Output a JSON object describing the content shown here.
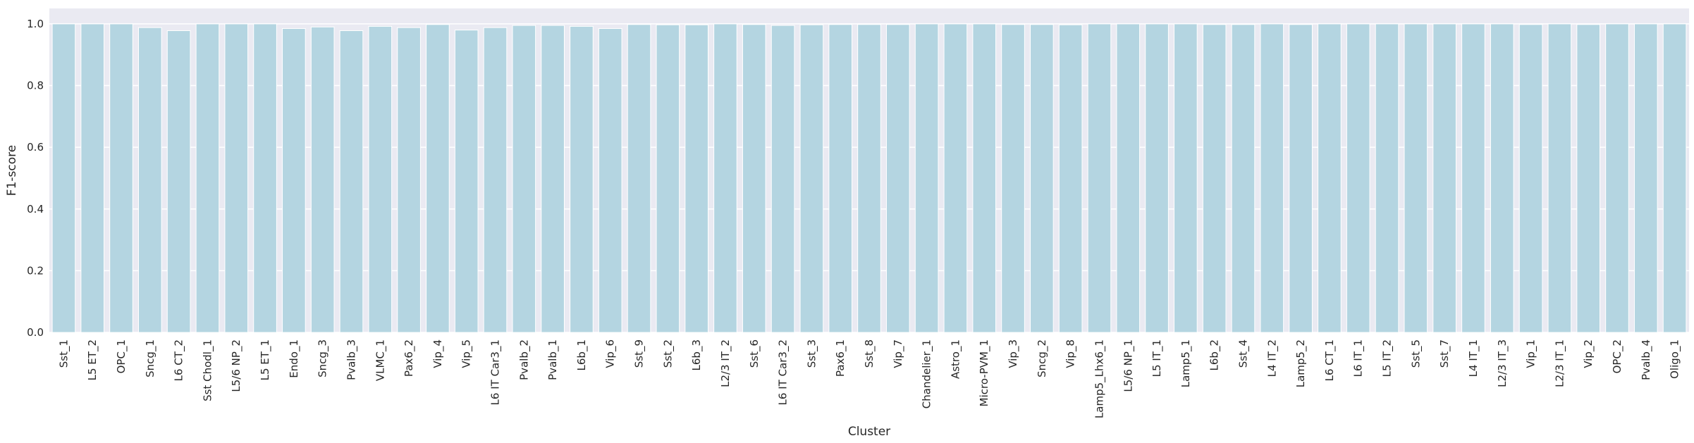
{
  "chart_data": {
    "type": "bar",
    "xlabel": "Cluster",
    "ylabel": "F1-score",
    "ylim": [
      0,
      1.05
    ],
    "yticks": [
      0.0,
      0.2,
      0.4,
      0.6,
      0.8,
      1.0
    ],
    "ytick_labels": [
      "0.0",
      "0.2",
      "0.4",
      "0.6",
      "0.8",
      "1.0"
    ],
    "grid": true,
    "colors": {
      "bar": "#b4d5e1",
      "bar_edge": "#ffffff",
      "plot_bg": "#eaeaf2",
      "grid": "#ffffff",
      "text": "#262626"
    },
    "categories": [
      "Sst_1",
      "L5 ET_2",
      "OPC_1",
      "Sncg_1",
      "L6 CT_2",
      "Sst Chodl_1",
      "L5/6 NP_2",
      "L5 ET_1",
      "Endo_1",
      "Sncg_3",
      "Pvalb_3",
      "VLMC_1",
      "Pax6_2",
      "Vip_4",
      "Vip_5",
      "L6 IT Car3_1",
      "Pvalb_2",
      "Pvalb_1",
      "L6b_1",
      "Vip_6",
      "Sst_9",
      "Sst_2",
      "L6b_3",
      "L2/3 IT_2",
      "Sst_6",
      "L6 IT Car3_2",
      "Sst_3",
      "Pax6_1",
      "Sst_8",
      "Vip_7",
      "Chandelier_1",
      "Astro_1",
      "Micro-PVM_1",
      "Vip_3",
      "Sncg_2",
      "Vip_8",
      "Lamp5_Lhx6_1",
      "L5/6 NP_1",
      "L5 IT_1",
      "Lamp5_1",
      "L6b_2",
      "Sst_4",
      "L4 IT_2",
      "Lamp5_2",
      "L6 CT_1",
      "L6 IT_1",
      "L5 IT_2",
      "Sst_5",
      "Sst_7",
      "L4 IT_1",
      "L2/3 IT_3",
      "Vip_1",
      "L2/3 IT_1",
      "Vip_2",
      "OPC_2",
      "Pvalb_4",
      "Oligo_1"
    ],
    "values": [
      1.0,
      1.0,
      1.0,
      0.988,
      0.978,
      1.0,
      1.0,
      1.0,
      0.985,
      0.99,
      0.978,
      0.992,
      0.988,
      0.998,
      0.98,
      0.988,
      0.995,
      0.995,
      0.992,
      0.985,
      0.998,
      0.997,
      0.997,
      1.0,
      0.998,
      0.995,
      0.997,
      0.998,
      0.998,
      0.998,
      1.0,
      1.0,
      1.0,
      0.998,
      0.998,
      0.997,
      1.0,
      1.0,
      1.0,
      1.0,
      0.998,
      0.998,
      1.0,
      0.998,
      1.0,
      1.0,
      1.0,
      1.0,
      1.0,
      1.0,
      1.0,
      0.998,
      1.0,
      0.998,
      1.0,
      1.0,
      1.0
    ]
  }
}
